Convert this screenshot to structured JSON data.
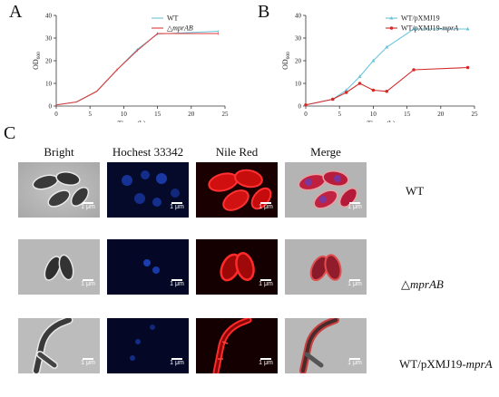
{
  "panels": {
    "a": "A",
    "b": "B",
    "c": "C"
  },
  "chart_data": [
    {
      "type": "line",
      "ylabel_main": "OD",
      "ylabel_sub": "600",
      "xlabel": "Times (h)",
      "xlim": [
        0,
        25
      ],
      "ylim": [
        0,
        40
      ],
      "xticks": [
        0,
        5,
        10,
        15,
        20,
        25
      ],
      "yticks": [
        0,
        10,
        20,
        30,
        40
      ],
      "legend_position": "top-right",
      "series": [
        {
          "name": "WT",
          "color": "#6cc4dc",
          "marker": "none",
          "x": [
            0,
            3,
            6,
            9,
            12,
            15,
            24
          ],
          "y": [
            0.5,
            1.8,
            6.5,
            16,
            25,
            31.8,
            33
          ]
        },
        {
          "name": "△mprAB",
          "name_symbol": "△",
          "name_rest": "mprAB",
          "color": "#e03a3a",
          "marker": "none",
          "x": [
            0,
            3,
            6,
            9,
            12,
            15,
            24
          ],
          "y": [
            0.5,
            1.8,
            6.5,
            16,
            24.5,
            32,
            32
          ]
        }
      ]
    },
    {
      "type": "line",
      "ylabel_main": "OD",
      "ylabel_sub": "600",
      "xlabel": "Times (h)",
      "xlim": [
        0,
        25
      ],
      "ylim": [
        0,
        40
      ],
      "xticks": [
        0,
        5,
        10,
        15,
        20,
        25
      ],
      "yticks": [
        0,
        10,
        20,
        30,
        40
      ],
      "legend_position": "top-right",
      "series": [
        {
          "name": "WT/pXMJ19",
          "name_plain": "WT/pXMJ19",
          "color": "#6cc4dc",
          "marker": "triangle",
          "x": [
            0,
            4,
            6,
            8,
            10,
            12,
            16,
            24
          ],
          "y": [
            0.5,
            3,
            7,
            13,
            20,
            26,
            34,
            34
          ]
        },
        {
          "name": "WT/pXMJ19-mprA",
          "name_plain": "WT/pXMJ19-",
          "name_ital": "mprA",
          "color": "#d62a2a",
          "marker": "circle",
          "x": [
            0,
            4,
            6,
            8,
            10,
            12,
            16,
            24
          ],
          "y": [
            0.5,
            3,
            6,
            10,
            7,
            6.5,
            16,
            17
          ]
        }
      ]
    }
  ],
  "microscopy": {
    "columns": [
      "Bright",
      "Hochest 33342",
      "Nile Red",
      "Merge"
    ],
    "rows": [
      {
        "label_plain": "WT",
        "label_ital": ""
      },
      {
        "label_plain": "△",
        "label_ital": "mprAB"
      },
      {
        "label_plain": "WT/pXMJ19-",
        "label_ital": "mprA"
      }
    ],
    "scale_bar": "1 μm",
    "colors": {
      "bright_bg": "#b8b8b8",
      "hoechst_bg": "#050a2a",
      "nile_bg": "#1a0000",
      "merge_bg": "#b0b0b0"
    }
  }
}
